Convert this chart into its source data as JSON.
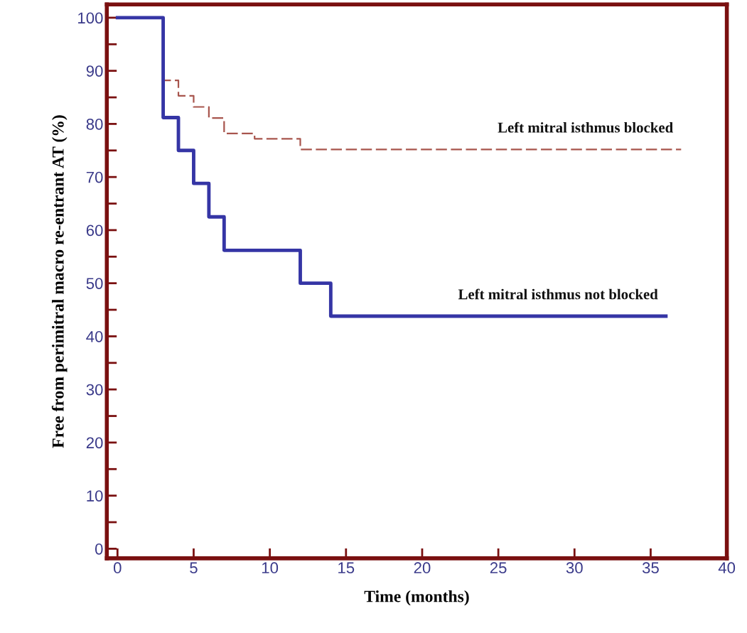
{
  "chart_data": {
    "type": "step",
    "xlabel": "Time (months)",
    "ylabel": "Free from perimitral macro re-entrant AT (%)",
    "xlim": [
      -0.7,
      40
    ],
    "ylim": [
      -1.8,
      102.5
    ],
    "xticks": [
      0,
      5,
      10,
      15,
      20,
      25,
      30,
      35,
      40
    ],
    "yticks": [
      0,
      {
        "value": 5,
        "label": null
      },
      10,
      {
        "value": 15,
        "label": null
      },
      20,
      {
        "value": 25,
        "label": null
      },
      30,
      {
        "value": 35,
        "label": null
      },
      40,
      {
        "value": 45,
        "label": null
      },
      50,
      {
        "value": 55,
        "label": null
      },
      60,
      {
        "value": 65,
        "label": null
      },
      70,
      {
        "value": 75,
        "label": null
      },
      80,
      {
        "value": 85,
        "label": null
      },
      90,
      {
        "value": 95,
        "label": null
      },
      100
    ],
    "grid": false,
    "legend": false,
    "marker": "none",
    "series": [
      {
        "name": "Left mitral isthmus blocked",
        "color": "#a8554d",
        "line_style": "dashed",
        "x": [
          0,
          3,
          4,
          5,
          6,
          7,
          9,
          12,
          37
        ],
        "values": [
          100,
          88.2,
          85.3,
          83.2,
          81.1,
          78.2,
          77.2,
          75.2,
          75.2
        ]
      },
      {
        "name": "Left mitral isthmus not blocked",
        "color": "#3535a5",
        "line_style": "solid",
        "x": [
          0,
          3,
          4,
          5,
          6,
          7,
          12,
          14,
          36
        ],
        "values": [
          100,
          81.2,
          75,
          68.8,
          62.5,
          56.2,
          50,
          43.8,
          43.8
        ]
      }
    ]
  }
}
